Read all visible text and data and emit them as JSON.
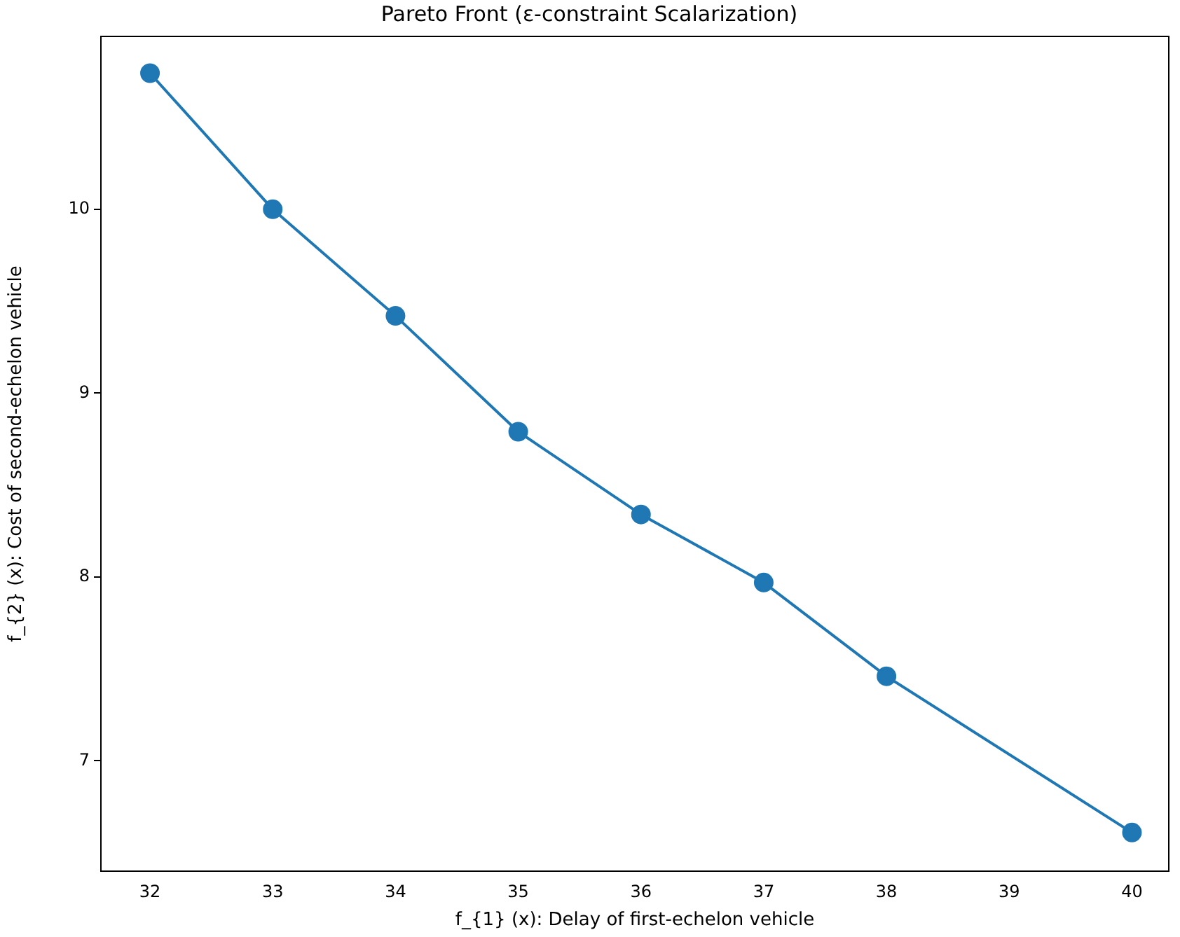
{
  "chart_data": {
    "type": "line",
    "title": "Pareto Front (ε-constraint Scalarization)",
    "xlabel": "f_{1} (x): Delay of first-echelon vehicle",
    "ylabel": "f_{2} (x): Cost of second-echelon vehicle",
    "x": [
      32,
      33,
      34,
      35,
      36,
      37,
      38,
      40
    ],
    "series": [
      {
        "color": "#1f77b4",
        "values": [
          10.74,
          10.0,
          9.42,
          8.79,
          8.34,
          7.97,
          7.46,
          6.61
        ]
      }
    ],
    "xlim": [
      31.6,
      40.3
    ],
    "xticks": [
      32,
      33,
      34,
      35,
      36,
      37,
      38,
      39,
      40
    ],
    "ylim": [
      6.4,
      10.94
    ],
    "yticks": [
      7,
      8,
      9,
      10
    ],
    "grid": false,
    "legend": false,
    "marker": "circle",
    "line_style": "solid"
  }
}
